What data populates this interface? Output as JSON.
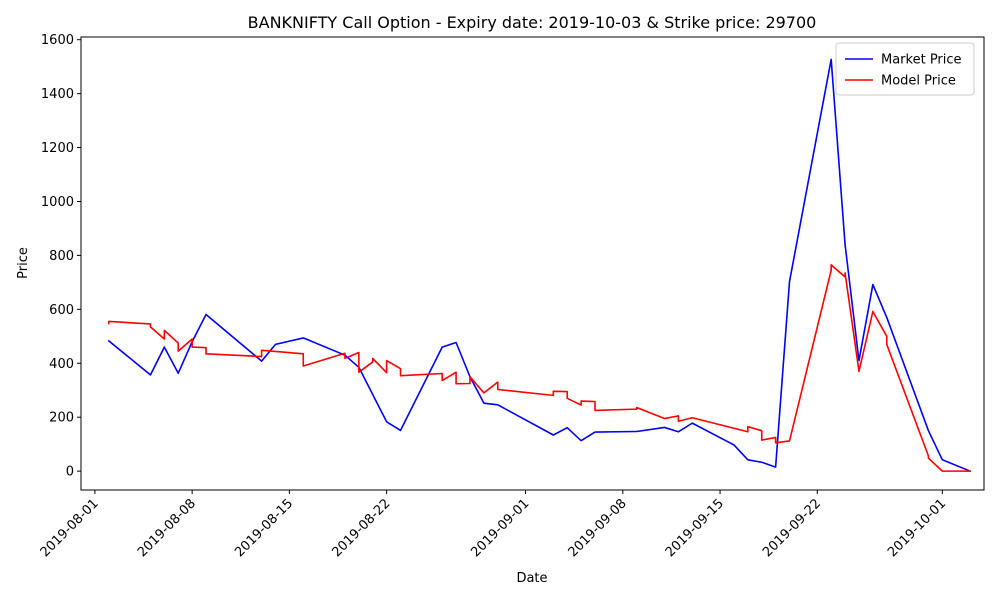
{
  "chart_data": {
    "type": "line",
    "title": "BANKNIFTY Call Option - Expiry date: 2019-10-03 & Strike price: 29700",
    "xlabel": "Date",
    "ylabel": "Price",
    "xlim": [
      "2019-07-31",
      "2019-10-04"
    ],
    "ylim": [
      -70,
      1610
    ],
    "x_ticks": [
      "2019-08-01",
      "2019-08-08",
      "2019-08-15",
      "2019-08-22",
      "2019-09-01",
      "2019-09-08",
      "2019-09-15",
      "2019-09-22",
      "2019-10-01"
    ],
    "y_ticks": [
      0,
      200,
      400,
      600,
      800,
      1000,
      1200,
      1400,
      1600
    ],
    "legend_position": "top-right",
    "series": [
      {
        "name": "Market Price",
        "color": "#0000ff",
        "points": [
          [
            "2019-08-02",
            483
          ],
          [
            "2019-08-05",
            357
          ],
          [
            "2019-08-06",
            460
          ],
          [
            "2019-08-07",
            363
          ],
          [
            "2019-08-08",
            480
          ],
          [
            "2019-08-09",
            581
          ],
          [
            "2019-08-13",
            408
          ],
          [
            "2019-08-14",
            470
          ],
          [
            "2019-08-16",
            494
          ],
          [
            "2019-08-19",
            430
          ],
          [
            "2019-08-20",
            385
          ],
          [
            "2019-08-22",
            183
          ],
          [
            "2019-08-23",
            151
          ],
          [
            "2019-08-26",
            460
          ],
          [
            "2019-08-27",
            477
          ],
          [
            "2019-08-28",
            350
          ],
          [
            "2019-08-29",
            252
          ],
          [
            "2019-08-30",
            246
          ],
          [
            "2019-09-03",
            134
          ],
          [
            "2019-09-04",
            161
          ],
          [
            "2019-09-05",
            113
          ],
          [
            "2019-09-06",
            145
          ],
          [
            "2019-09-09",
            147
          ],
          [
            "2019-09-11",
            162
          ],
          [
            "2019-09-12",
            146
          ],
          [
            "2019-09-13",
            178
          ],
          [
            "2019-09-16",
            97
          ],
          [
            "2019-09-17",
            42
          ],
          [
            "2019-09-18",
            33
          ],
          [
            "2019-09-19",
            15
          ],
          [
            "2019-09-20",
            703
          ],
          [
            "2019-09-23",
            1527
          ],
          [
            "2019-09-24",
            840
          ],
          [
            "2019-09-25",
            410
          ],
          [
            "2019-09-26",
            692
          ],
          [
            "2019-09-27",
            570
          ],
          [
            "2019-09-30",
            150
          ],
          [
            "2019-10-01",
            42
          ],
          [
            "2019-10-03",
            0
          ]
        ]
      },
      {
        "name": "Model Price",
        "color": "#ff0000",
        "points": [
          [
            "2019-08-02",
            547
          ],
          [
            "2019-08-02",
            555
          ],
          [
            "2019-08-05",
            546
          ],
          [
            "2019-08-05",
            535
          ],
          [
            "2019-08-06",
            490
          ],
          [
            "2019-08-06",
            522
          ],
          [
            "2019-08-07",
            475
          ],
          [
            "2019-08-07",
            445
          ],
          [
            "2019-08-08",
            490
          ],
          [
            "2019-08-08",
            460
          ],
          [
            "2019-08-09",
            458
          ],
          [
            "2019-08-09",
            435
          ],
          [
            "2019-08-13",
            425
          ],
          [
            "2019-08-13",
            448
          ],
          [
            "2019-08-14",
            444
          ],
          [
            "2019-08-16",
            435
          ],
          [
            "2019-08-16",
            390
          ],
          [
            "2019-08-19",
            437
          ],
          [
            "2019-08-19",
            418
          ],
          [
            "2019-08-20",
            440
          ],
          [
            "2019-08-20",
            367
          ],
          [
            "2019-08-21",
            405
          ],
          [
            "2019-08-21",
            418
          ],
          [
            "2019-08-22",
            365
          ],
          [
            "2019-08-22",
            410
          ],
          [
            "2019-08-23",
            380
          ],
          [
            "2019-08-23",
            354
          ],
          [
            "2019-08-26",
            362
          ],
          [
            "2019-08-26",
            336
          ],
          [
            "2019-08-27",
            367
          ],
          [
            "2019-08-27",
            324
          ],
          [
            "2019-08-28",
            325
          ],
          [
            "2019-08-28",
            350
          ],
          [
            "2019-08-29",
            290
          ],
          [
            "2019-08-30",
            330
          ],
          [
            "2019-08-30",
            303
          ],
          [
            "2019-09-03",
            281
          ],
          [
            "2019-09-03",
            296
          ],
          [
            "2019-09-04",
            295
          ],
          [
            "2019-09-04",
            270
          ],
          [
            "2019-09-05",
            245
          ],
          [
            "2019-09-05",
            260
          ],
          [
            "2019-09-06",
            258
          ],
          [
            "2019-09-06",
            225
          ],
          [
            "2019-09-09",
            230
          ],
          [
            "2019-09-09",
            236
          ],
          [
            "2019-09-11",
            195
          ],
          [
            "2019-09-12",
            205
          ],
          [
            "2019-09-12",
            185
          ],
          [
            "2019-09-13",
            198
          ],
          [
            "2019-09-17",
            146
          ],
          [
            "2019-09-17",
            165
          ],
          [
            "2019-09-18",
            150
          ],
          [
            "2019-09-18",
            115
          ],
          [
            "2019-09-19",
            125
          ],
          [
            "2019-09-19",
            105
          ],
          [
            "2019-09-20",
            112
          ],
          [
            "2019-09-23",
            745
          ],
          [
            "2019-09-23",
            765
          ],
          [
            "2019-09-24",
            720
          ],
          [
            "2019-09-24",
            735
          ],
          [
            "2019-09-25",
            370
          ],
          [
            "2019-09-26",
            592
          ],
          [
            "2019-09-27",
            500
          ],
          [
            "2019-09-27",
            470
          ],
          [
            "2019-09-30",
            56
          ],
          [
            "2019-09-30",
            48
          ],
          [
            "2019-10-01",
            0
          ],
          [
            "2019-10-03",
            0
          ]
        ]
      }
    ]
  }
}
